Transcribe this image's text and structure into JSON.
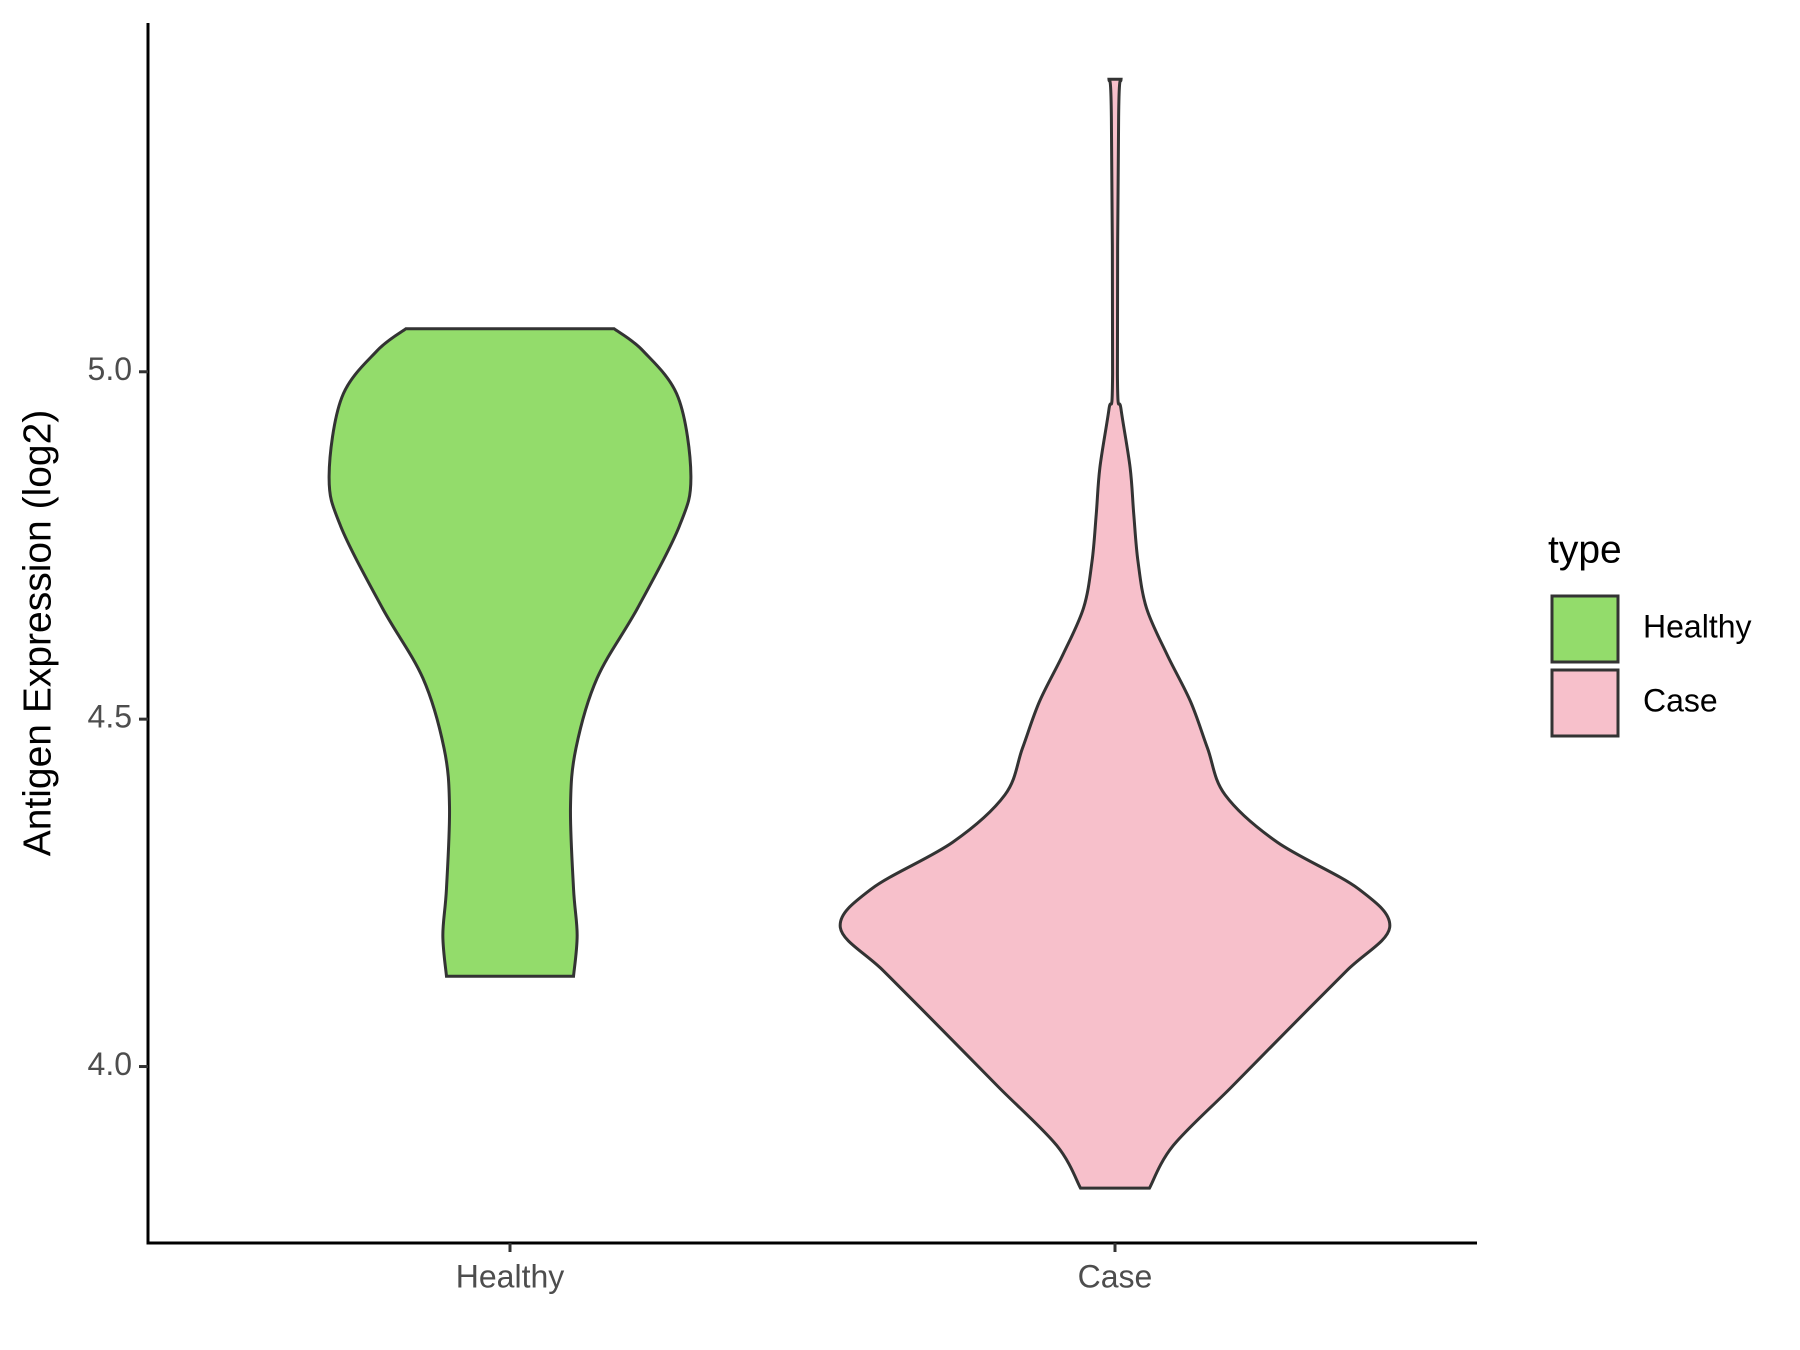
{
  "chart_data": {
    "type": "violin",
    "y_label": "Antigen Expression (log2)",
    "categories": [
      "Healthy",
      "Case"
    ],
    "legend_title": "type",
    "legend_position": "right",
    "ylim": [
      3.746,
      5.502
    ],
    "yticks": [
      {
        "value": 4,
        "label": "4.0"
      },
      {
        "value": 4.5,
        "label": "4.5"
      },
      {
        "value": 5,
        "label": "5.0"
      }
    ],
    "series": [
      {
        "name": "Healthy",
        "color": "#93dc6b",
        "y": [
          5.062,
          5.03,
          4.963,
          4.85,
          4.778,
          4.66,
          4.559,
          4.458,
          4.374,
          4.256,
          4.189,
          4.13
        ],
        "width": [
          0.172,
          0.22,
          0.278,
          0.299,
          0.28,
          0.211,
          0.144,
          0.109,
          0.1,
          0.105,
          0.111,
          0.105
        ]
      },
      {
        "name": "Case",
        "color": "#f7c0cb",
        "y": [
          5.421,
          5.367,
          4.997,
          4.946,
          4.862,
          4.795,
          4.727,
          4.66,
          4.593,
          4.525,
          4.458,
          4.391,
          4.323,
          4.256,
          4.2,
          4.138,
          4.054,
          3.97,
          3.886,
          3.825
        ],
        "width": [
          0.01,
          0.006,
          0.004,
          0.01,
          0.025,
          0.031,
          0.038,
          0.052,
          0.086,
          0.125,
          0.153,
          0.182,
          0.268,
          0.402,
          0.454,
          0.383,
          0.287,
          0.192,
          0.096,
          0.057
        ]
      }
    ]
  }
}
